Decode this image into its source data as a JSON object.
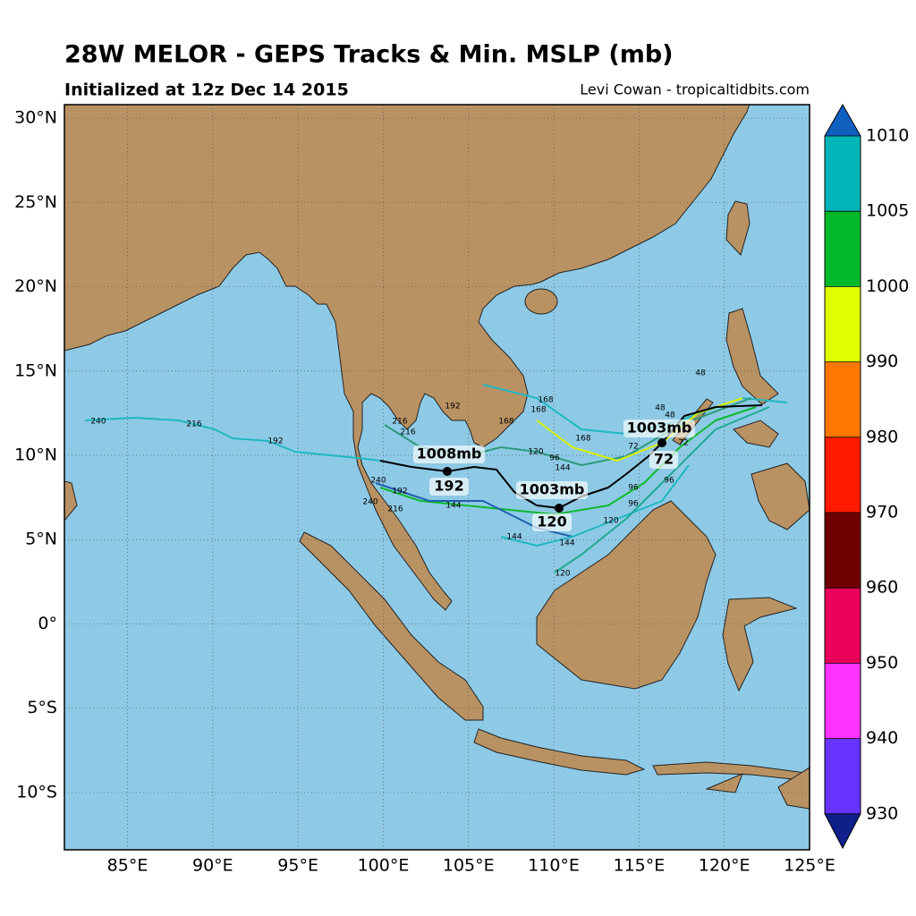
{
  "header": {
    "title": "28W MELOR - GEPS Tracks & Min. MSLP (mb)",
    "subtitle": "Initialized at 12z Dec 14 2015",
    "credit": "Levi Cowan - tropicaltidbits.com"
  },
  "map": {
    "lonlim": [
      81.3,
      125
    ],
    "latlim": [
      -13.4,
      30.8
    ],
    "lonticks": [
      {
        "value": 85,
        "label": "85°E"
      },
      {
        "value": 90,
        "label": "90°E"
      },
      {
        "value": 95,
        "label": "95°E"
      },
      {
        "value": 100,
        "label": "100°E"
      },
      {
        "value": 105,
        "label": "105°E"
      },
      {
        "value": 110,
        "label": "110°E"
      },
      {
        "value": 115,
        "label": "115°E"
      },
      {
        "value": 120,
        "label": "120°E"
      },
      {
        "value": 125,
        "label": "125°E"
      }
    ],
    "latticks": [
      {
        "value": 30,
        "label": "30°N"
      },
      {
        "value": 25,
        "label": "25°N"
      },
      {
        "value": 20,
        "label": "20°N"
      },
      {
        "value": 15,
        "label": "15°N"
      },
      {
        "value": 10,
        "label": "10°N"
      },
      {
        "value": 5,
        "label": "5°N"
      },
      {
        "value": 0,
        "label": "0°"
      },
      {
        "value": -5,
        "label": "5°S"
      },
      {
        "value": -10,
        "label": "10°S"
      }
    ],
    "annotations": [
      "1008mb",
      "192",
      "1003mb",
      "120",
      "1003mb",
      "72"
    ],
    "hour_labels": [
      "240",
      "216",
      "192",
      "216",
      "216",
      "240",
      "192",
      "240",
      "216",
      "192",
      "168",
      "168",
      "168",
      "168",
      "144",
      "144",
      "144",
      "144",
      "120",
      "120",
      "120",
      "96",
      "96",
      "96",
      "96",
      "72",
      "72",
      "48",
      "48",
      "48"
    ]
  },
  "colorbar": {
    "ticks": [
      1010,
      1005,
      1000,
      990,
      980,
      970,
      960,
      950,
      940,
      930
    ],
    "colors": [
      "#00b5b8",
      "#00b92a",
      "#e0ff00",
      "#ff7700",
      "#ff1a00",
      "#700000",
      "#e8005a",
      "#ff33ff",
      "#6633ff"
    ],
    "extend_colors": [
      "#1060c0",
      "#10208a"
    ]
  }
}
